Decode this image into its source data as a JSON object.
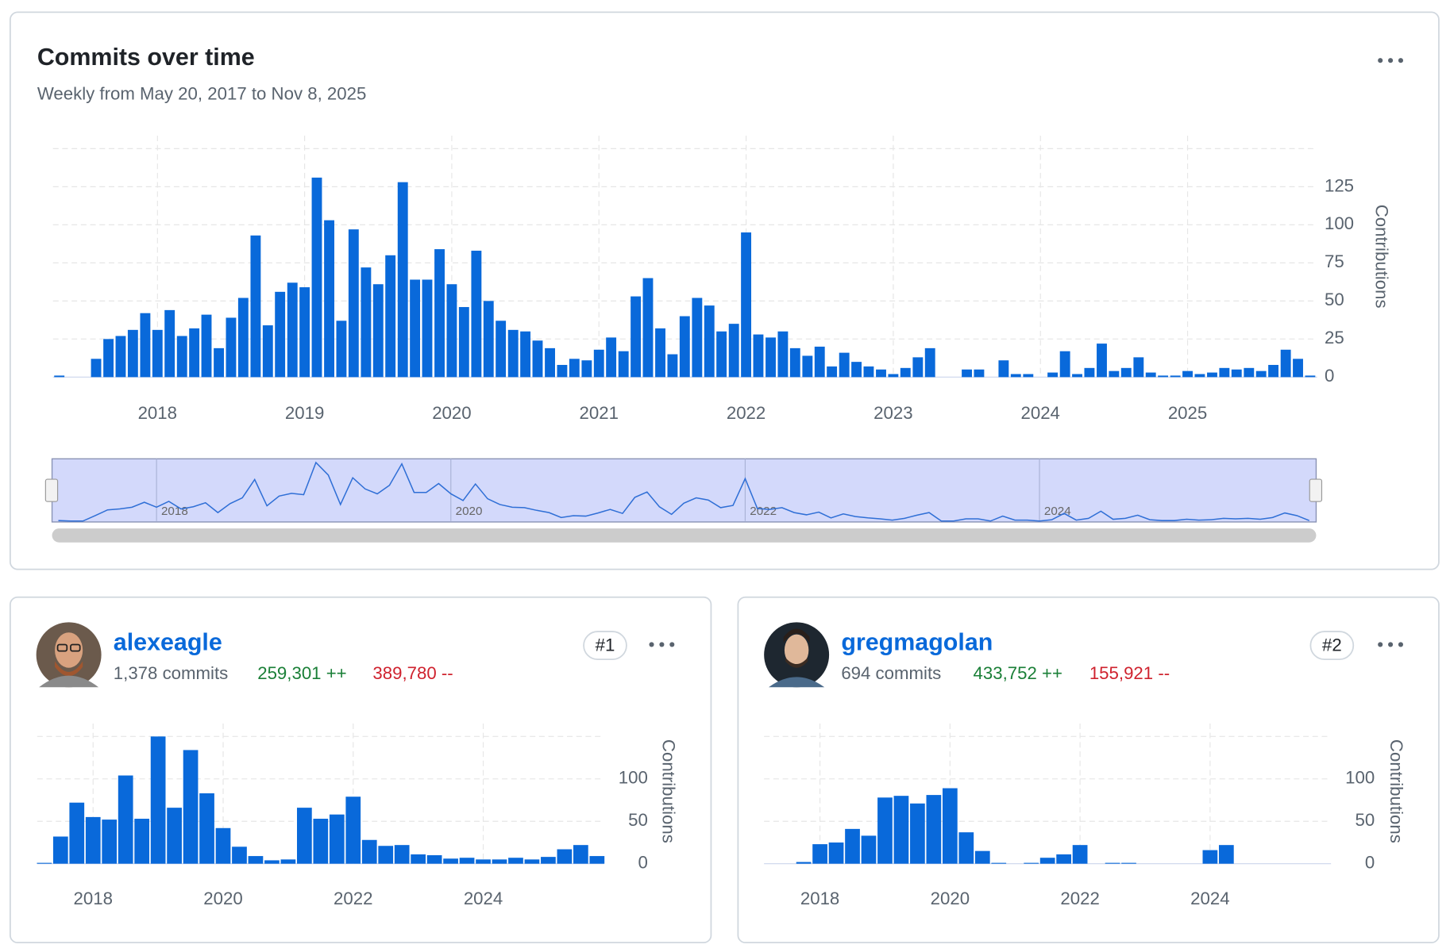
{
  "chart_data": [
    {
      "type": "bar",
      "title": "Commits over time",
      "subtitle": "Weekly from May 20, 2017 to Nov 8, 2025",
      "y_label": "Contributions",
      "color": "#0969da",
      "x": [
        2017.333,
        2017.417,
        2017.5,
        2017.583,
        2017.667,
        2017.75,
        2017.833,
        2017.917,
        2018,
        2018.083,
        2018.167,
        2018.25,
        2018.333,
        2018.417,
        2018.5,
        2018.583,
        2018.667,
        2018.75,
        2018.833,
        2018.917,
        2019,
        2019.083,
        2019.167,
        2019.25,
        2019.333,
        2019.417,
        2019.5,
        2019.583,
        2019.667,
        2019.75,
        2019.833,
        2019.917,
        2020,
        2020.083,
        2020.167,
        2020.25,
        2020.333,
        2020.417,
        2020.5,
        2020.583,
        2020.667,
        2020.75,
        2020.833,
        2020.917,
        2021,
        2021.083,
        2021.167,
        2021.25,
        2021.333,
        2021.417,
        2021.5,
        2021.583,
        2021.667,
        2021.75,
        2021.833,
        2021.917,
        2022,
        2022.083,
        2022.167,
        2022.25,
        2022.333,
        2022.417,
        2022.5,
        2022.583,
        2022.667,
        2022.75,
        2022.833,
        2022.917,
        2023,
        2023.083,
        2023.167,
        2023.25,
        2023.333,
        2023.417,
        2023.5,
        2023.583,
        2023.667,
        2023.75,
        2023.833,
        2023.917,
        2024,
        2024.083,
        2024.167,
        2024.25,
        2024.333,
        2024.417,
        2024.5,
        2024.583,
        2024.667,
        2024.75,
        2024.833,
        2024.917,
        2025,
        2025.083,
        2025.167,
        2025.25,
        2025.333,
        2025.417,
        2025.5,
        2025.583,
        2025.667,
        2025.75,
        2025.833
      ],
      "values": [
        1,
        0,
        0,
        12,
        25,
        27,
        31,
        42,
        31,
        44,
        27,
        32,
        41,
        19,
        39,
        52,
        93,
        34,
        56,
        62,
        59,
        131,
        103,
        37,
        97,
        72,
        61,
        80,
        128,
        64,
        64,
        84,
        61,
        46,
        83,
        50,
        37,
        31,
        30,
        24,
        19,
        8,
        12,
        11,
        18,
        26,
        17,
        53,
        65,
        32,
        15,
        40,
        52,
        47,
        30,
        35,
        95,
        28,
        26,
        30,
        19,
        14,
        20,
        7,
        16,
        10,
        7,
        5,
        2,
        6,
        13,
        19,
        0,
        0,
        5,
        5,
        0,
        11,
        2,
        2,
        0,
        3,
        17,
        2,
        6,
        22,
        4,
        6,
        13,
        3,
        1,
        1,
        4,
        2,
        3,
        6,
        5,
        6,
        4,
        8,
        18,
        12,
        1
      ],
      "xlim": [
        2017.29,
        2025.88
      ],
      "ylim": [
        0,
        150
      ],
      "xticks": [
        2018,
        2019,
        2020,
        2021,
        2022,
        2023,
        2024,
        2025
      ],
      "yticks": [
        0,
        25,
        50,
        75,
        100,
        125
      ],
      "grid": true,
      "navigator_ticks": [
        2018,
        2020,
        2022,
        2024
      ]
    },
    {
      "type": "bar",
      "user": "alexeagle",
      "commits": "1,378 commits",
      "additions": "259,301 ++",
      "deletions": "389,780 --",
      "rank": "#1",
      "y_label": "Contributions",
      "color": "#0969da",
      "x": [
        2017.25,
        2017.5,
        2017.75,
        2018,
        2018.25,
        2018.5,
        2018.75,
        2019,
        2019.25,
        2019.5,
        2019.75,
        2020,
        2020.25,
        2020.5,
        2020.75,
        2021,
        2021.25,
        2021.5,
        2021.75,
        2022,
        2022.25,
        2022.5,
        2022.75,
        2023,
        2023.25,
        2023.5,
        2023.75,
        2024,
        2024.25,
        2024.5,
        2024.75,
        2025,
        2025.25,
        2025.5,
        2025.75
      ],
      "values": [
        1,
        32,
        72,
        55,
        52,
        104,
        53,
        150,
        66,
        134,
        83,
        42,
        20,
        9,
        4,
        5,
        66,
        53,
        58,
        79,
        28,
        21,
        22,
        11,
        10,
        6,
        7,
        5,
        5,
        7,
        5,
        8,
        17,
        22,
        9
      ],
      "xlim": [
        2017.14,
        2025.86
      ],
      "ylim": [
        0,
        150
      ],
      "xticks": [
        2018,
        2020,
        2022,
        2024
      ],
      "yticks": [
        0,
        50,
        100
      ],
      "grid": true
    },
    {
      "type": "bar",
      "user": "gregmagolan",
      "commits": "694 commits",
      "additions": "433,752 ++",
      "deletions": "155,921 --",
      "rank": "#2",
      "y_label": "Contributions",
      "color": "#0969da",
      "x": [
        2017.75,
        2018,
        2018.25,
        2018.5,
        2018.75,
        2019,
        2019.25,
        2019.5,
        2019.75,
        2020,
        2020.25,
        2020.5,
        2020.75,
        2021,
        2021.25,
        2021.5,
        2021.75,
        2022,
        2022.25,
        2022.5,
        2022.75,
        2023,
        2023.25,
        2023.5,
        2023.75,
        2024,
        2024.25
      ],
      "values": [
        2,
        23,
        25,
        41,
        33,
        78,
        80,
        71,
        81,
        89,
        37,
        15,
        1,
        0,
        1,
        7,
        11,
        22,
        0,
        1,
        1,
        0,
        0,
        0,
        0,
        16,
        22
      ],
      "xlim": [
        2017.14,
        2025.86
      ],
      "ylim": [
        0,
        150
      ],
      "xticks": [
        2018,
        2020,
        2022,
        2024
      ],
      "yticks": [
        0,
        50,
        100
      ],
      "grid": true
    }
  ]
}
